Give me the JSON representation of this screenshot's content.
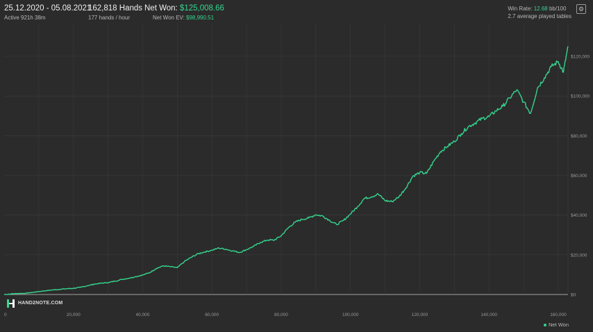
{
  "header": {
    "date_range": "25.12.2020 - 05.08.2021",
    "active_time": "Active 921h 38m",
    "hands": "162,818 Hands",
    "hands_per_hour": "177 hands / hour",
    "net_won_label": "Net Won: ",
    "net_won_value": "$125,008.66",
    "ev_label": "Net Won  EV: ",
    "ev_value": "$98,990.51",
    "win_rate_label": "Win Rate: ",
    "win_rate_value": "12.68",
    "win_rate_unit": " bb/100",
    "tables": "2.7 average played tables"
  },
  "logo": {
    "text": "HAND2NOTE.COM"
  },
  "icons": {
    "settings": "settings-icon"
  },
  "colors": {
    "background": "#2b2b2b",
    "line": "#35d68f",
    "grid": "#3d3d3d",
    "zero_line": "#d0d0d0"
  },
  "chart_data": {
    "type": "line",
    "series": [
      {
        "name": "Net Won",
        "x": [
          0,
          2000,
          4000,
          6000,
          8000,
          10000,
          12000,
          14000,
          16000,
          18000,
          20000,
          22000,
          24000,
          26000,
          28000,
          30000,
          32000,
          34000,
          36000,
          38000,
          40000,
          42000,
          44000,
          46000,
          48000,
          50000,
          52000,
          54000,
          56000,
          58000,
          60000,
          62000,
          64000,
          66000,
          68000,
          70000,
          72000,
          74000,
          76000,
          78000,
          80000,
          82000,
          84000,
          86000,
          88000,
          90000,
          92000,
          94000,
          96000,
          98000,
          100000,
          102000,
          104000,
          106000,
          108000,
          110000,
          112000,
          114000,
          116000,
          118000,
          120000,
          122000,
          124000,
          126000,
          128000,
          130000,
          132000,
          134000,
          136000,
          138000,
          140000,
          142000,
          144000,
          146000,
          148000,
          150000,
          152000,
          154000,
          156000,
          158000,
          160000,
          161500,
          162818
        ],
        "y": [
          0,
          300,
          500,
          600,
          1000,
          1500,
          1900,
          2300,
          2600,
          2900,
          3100,
          3600,
          4400,
          5200,
          5700,
          6000,
          6700,
          7600,
          8200,
          9000,
          9800,
          11000,
          13200,
          14400,
          14000,
          13500,
          16500,
          18700,
          20500,
          21500,
          22300,
          23400,
          22800,
          22000,
          21200,
          22600,
          24200,
          26200,
          27400,
          27400,
          29600,
          33500,
          36400,
          37800,
          38600,
          40200,
          39500,
          37300,
          35200,
          37300,
          40600,
          44200,
          48400,
          49200,
          50600,
          47300,
          46800,
          49200,
          53700,
          59600,
          61400,
          61000,
          67000,
          72000,
          74600,
          77100,
          81000,
          84500,
          86400,
          88600,
          89600,
          92500,
          94800,
          99000,
          103100,
          97000,
          91200,
          104000,
          109200,
          114800,
          117300,
          112000,
          125000
        ]
      }
    ],
    "x_ticks": [
      "0",
      "20,000",
      "40,000",
      "60,000",
      "80,000",
      "100,000",
      "120,000",
      "140,000",
      "160,000"
    ],
    "y_ticks": [
      "$0",
      "$20,000",
      "$40,000",
      "$60,000",
      "$80,000",
      "$100,000",
      "$120,000"
    ],
    "xlim": [
      0,
      165000
    ],
    "ylim": [
      0,
      125000
    ],
    "grid": true,
    "legend_position": "bottom-right",
    "legend": "Net Won"
  }
}
